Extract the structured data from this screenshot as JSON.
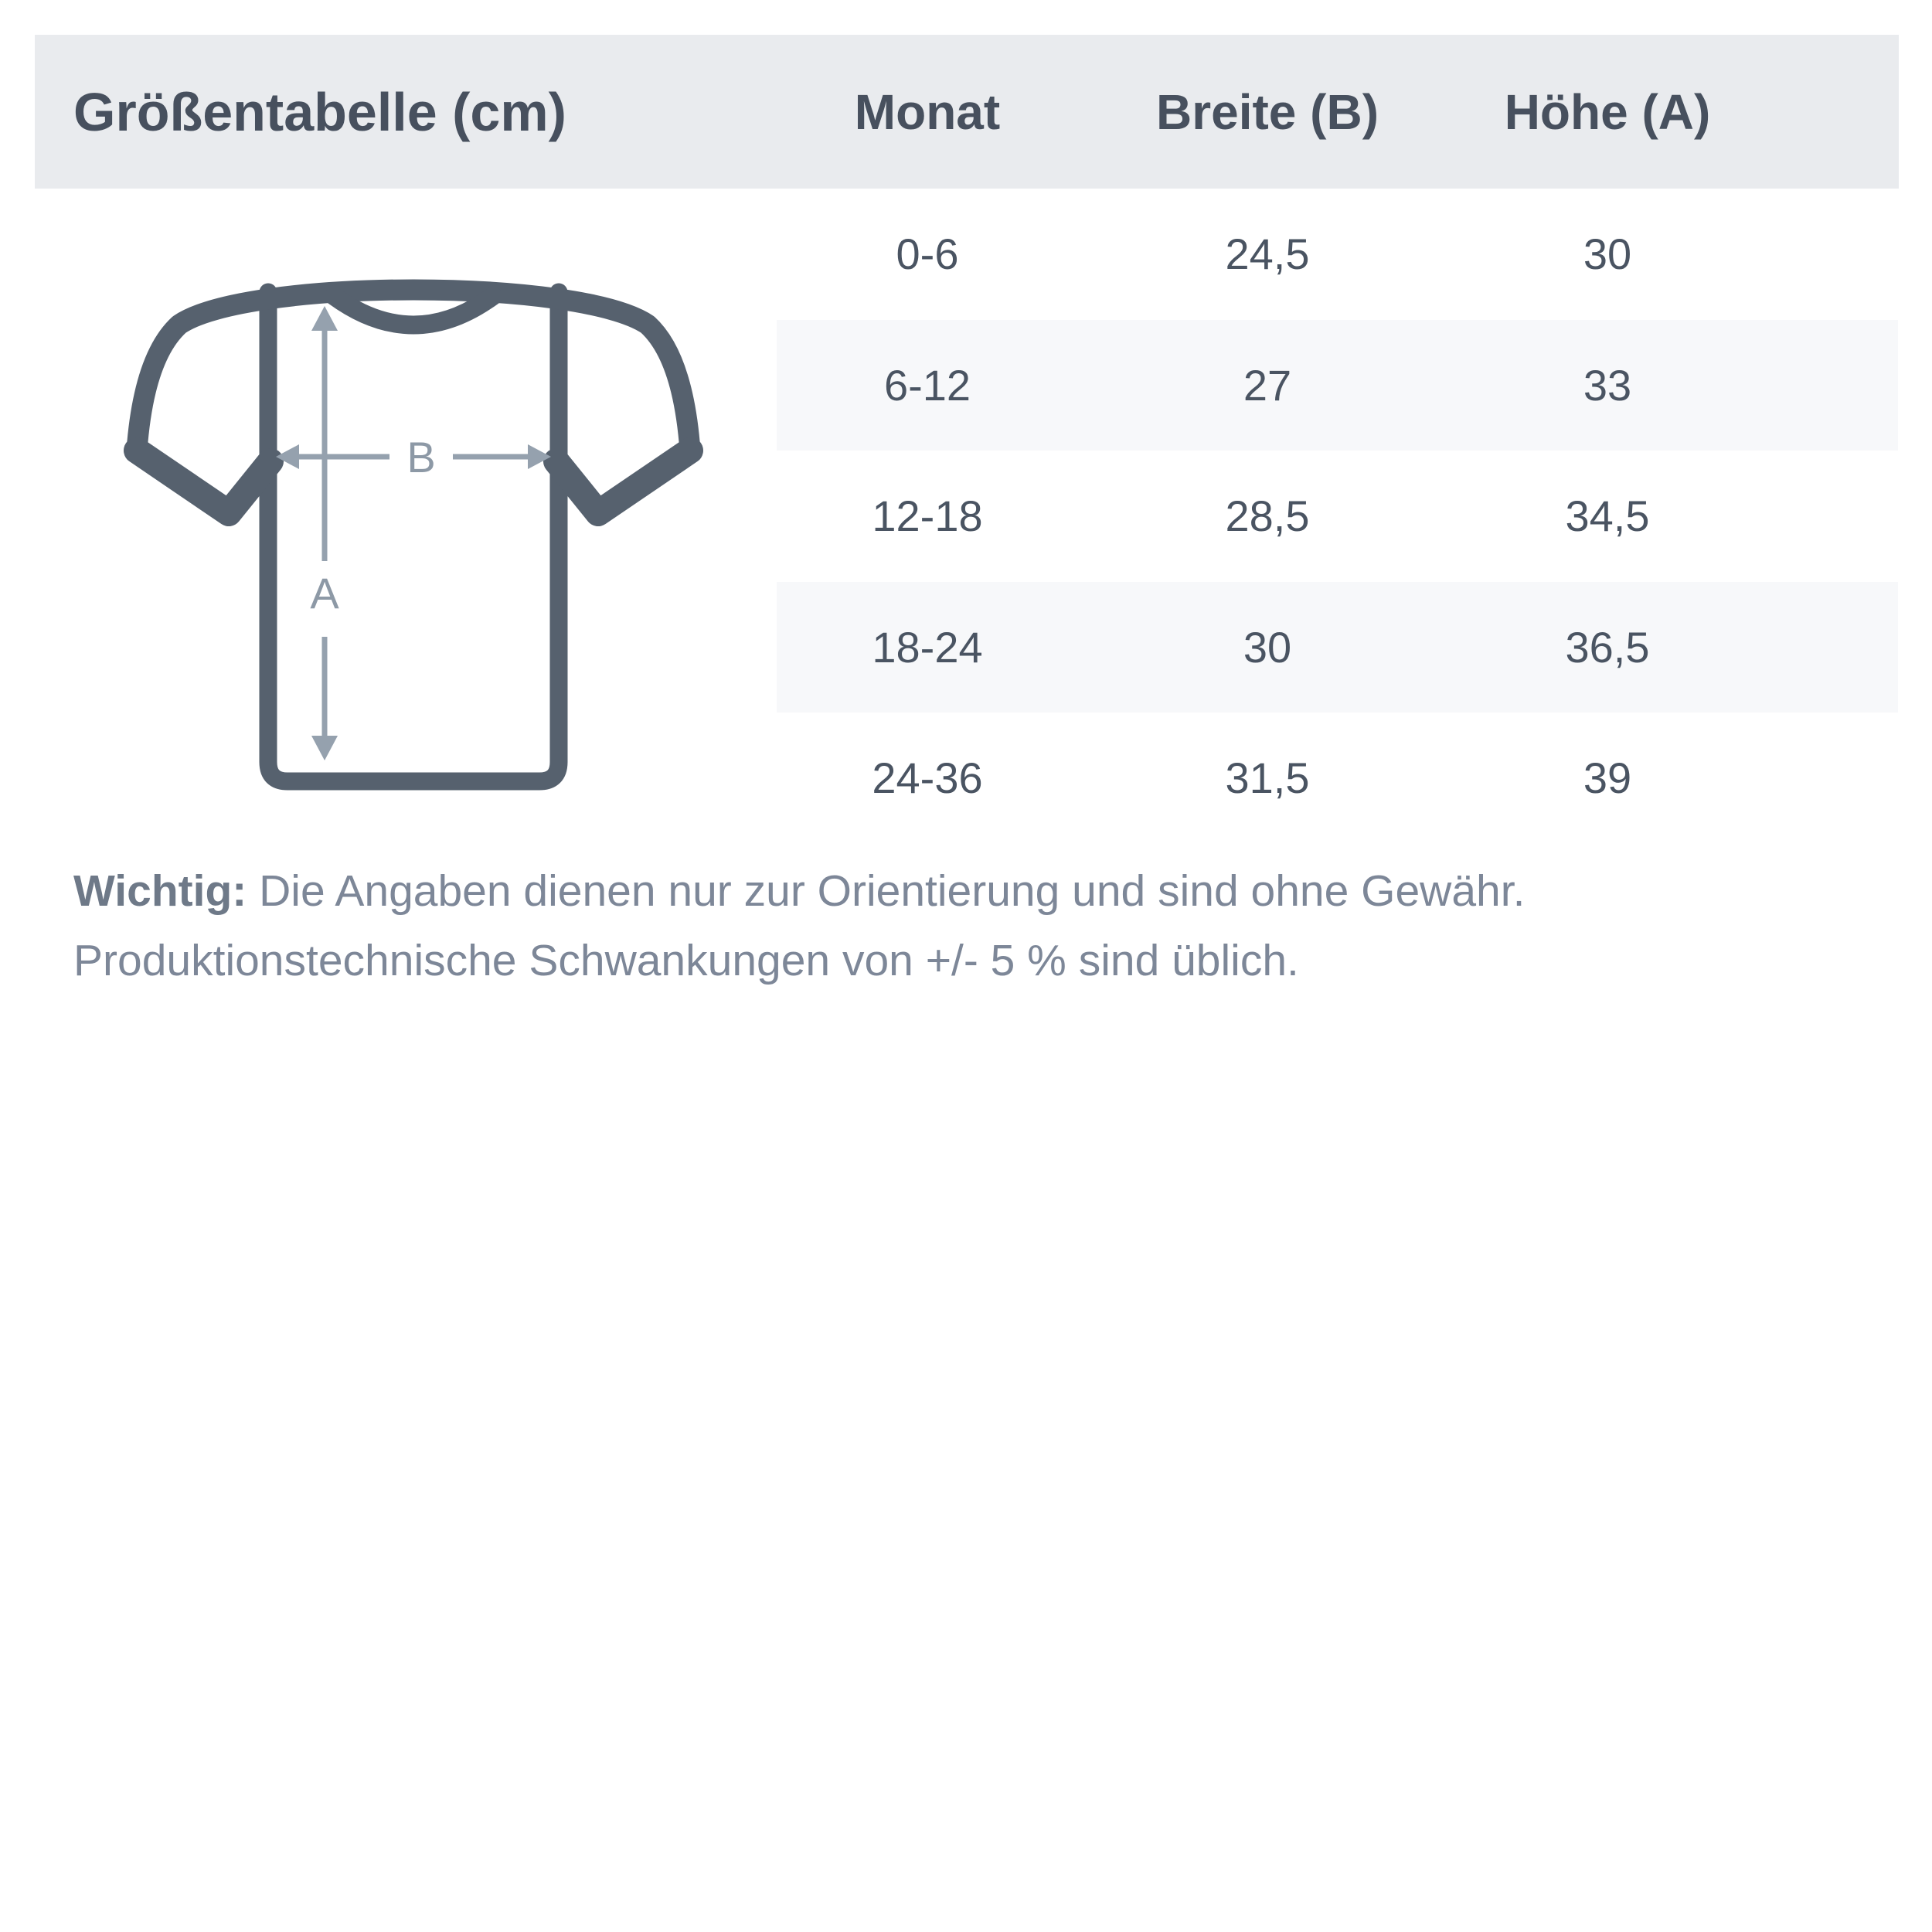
{
  "header": {
    "title": "Größentabelle (cm)",
    "columns": [
      "Monat",
      "Breite (B)",
      "Höhe (A)"
    ]
  },
  "table": {
    "rows": [
      {
        "monat": "0-6",
        "breite": "24,5",
        "hoehe": "30"
      },
      {
        "monat": "6-12",
        "breite": "27",
        "hoehe": "33"
      },
      {
        "monat": "12-18",
        "breite": "28,5",
        "hoehe": "34,5"
      },
      {
        "monat": "18-24",
        "breite": "30",
        "hoehe": "36,5"
      },
      {
        "monat": "24-36",
        "breite": "31,5",
        "hoehe": "39"
      }
    ]
  },
  "diagram": {
    "label_a": "A",
    "label_b": "B"
  },
  "note": {
    "label": "Wichtig:",
    "line1": "Die Angaben dienen nur zur Orientierung und sind ohne Gewähr.",
    "line2": "Produktionstechnische Schwankungen von +/- 5 % sind üblich."
  },
  "colors": {
    "header-bg": "#e9ebee",
    "stripe-bg": "#f7f8fa",
    "dark-text": "#47505e",
    "cell-text": "#4a5462",
    "shirt-stroke": "#56616e",
    "arrow-color": "#95a1ae",
    "label-color": "#8d99a6",
    "note-text": "#7d8798",
    "note-label": "#6e7988"
  },
  "chart_data": {
    "type": "table",
    "title": "Größentabelle (cm)",
    "units": "cm",
    "columns": [
      "Monat",
      "Breite (B)",
      "Höhe (A)"
    ],
    "categories": [
      "0-6",
      "6-12",
      "12-18",
      "18-24",
      "24-36"
    ],
    "series": [
      {
        "name": "Breite (B)",
        "values": [
          24.5,
          27,
          28.5,
          30,
          31.5
        ]
      },
      {
        "name": "Höhe (A)",
        "values": [
          30,
          33,
          34.5,
          36.5,
          39
        ]
      }
    ],
    "notes": "Wichtig: Die Angaben dienen nur zur Orientierung und sind ohne Gewähr. Produktionstechnische Schwankungen von +/- 5 % sind üblich."
  }
}
